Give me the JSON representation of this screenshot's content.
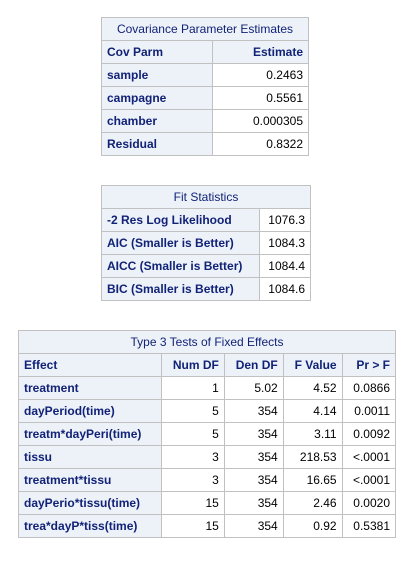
{
  "cov_table": {
    "caption": "Covariance Parameter Estimates",
    "headers": [
      "Cov Parm",
      "Estimate"
    ],
    "rows": [
      [
        "sample",
        "0.2463"
      ],
      [
        "campagne",
        "0.5561"
      ],
      [
        "chamber",
        "0.000305"
      ],
      [
        "Residual",
        "0.8322"
      ]
    ]
  },
  "fit_table": {
    "caption": "Fit Statistics",
    "rows": [
      [
        "-2 Res Log Likelihood",
        "1076.3"
      ],
      [
        "AIC (Smaller is Better)",
        "1084.3"
      ],
      [
        "AICC (Smaller is Better)",
        "1084.4"
      ],
      [
        "BIC (Smaller is Better)",
        "1084.6"
      ]
    ]
  },
  "fixed_table": {
    "caption": "Type 3 Tests of Fixed Effects",
    "headers": [
      "Effect",
      "Num DF",
      "Den DF",
      "F Value",
      "Pr > F"
    ],
    "rows": [
      [
        "treatment",
        "1",
        "5.02",
        "4.52",
        "0.0866"
      ],
      [
        "dayPeriod(time)",
        "5",
        "354",
        "4.14",
        "0.0011"
      ],
      [
        "treatm*dayPeri(time)",
        "5",
        "354",
        "3.11",
        "0.0092"
      ],
      [
        "tissu",
        "3",
        "354",
        "218.53",
        "<.0001"
      ],
      [
        "treatment*tissu",
        "3",
        "354",
        "16.65",
        "<.0001"
      ],
      [
        "dayPerio*tissu(time)",
        "15",
        "354",
        "2.46",
        "0.0020"
      ],
      [
        "trea*dayP*tiss(time)",
        "15",
        "354",
        "0.92",
        "0.5381"
      ]
    ]
  }
}
